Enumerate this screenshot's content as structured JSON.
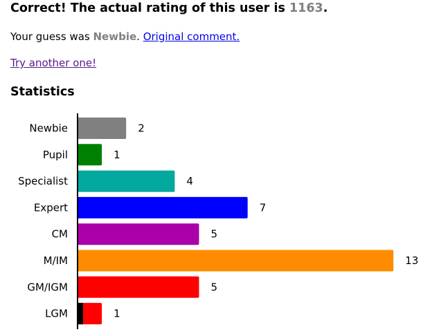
{
  "result": {
    "heading_prefix": "Correct! The actual rating of this user is ",
    "rating": "1163",
    "heading_suffix": ".",
    "guess_prefix": "Your guess was ",
    "guess": "Newbie",
    "guess_suffix": ". ",
    "original_comment_link": "Original comment.",
    "try_another_link": "Try another one!"
  },
  "statistics": {
    "title": "Statistics"
  },
  "chart_data": {
    "type": "bar",
    "orientation": "horizontal",
    "categories": [
      "Newbie",
      "Pupil",
      "Specialist",
      "Expert",
      "CM",
      "M/IM",
      "GM/IGM",
      "LGM"
    ],
    "values": [
      2,
      1,
      4,
      7,
      5,
      13,
      5,
      1
    ],
    "colors": [
      "#808080",
      "#008000",
      "#03a89e",
      "#0000ff",
      "#aa00aa",
      "#ff8c00",
      "#ff0000",
      "#ff0000"
    ],
    "lgm_first_letter_color": "#000000",
    "title": "",
    "xlabel": "",
    "ylabel": "",
    "xlim": [
      0,
      13
    ],
    "grid": false,
    "legend": "none"
  }
}
